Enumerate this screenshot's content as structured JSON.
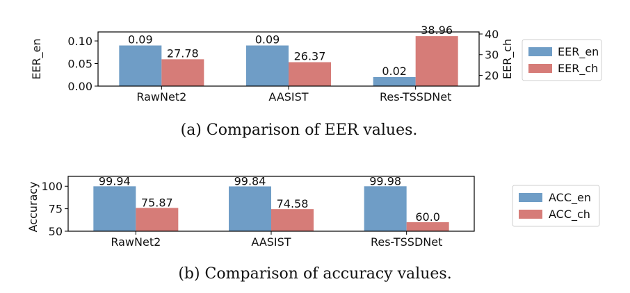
{
  "colors": {
    "en": "#6f9dc6",
    "ch": "#d67c78",
    "axis": "#000000"
  },
  "chart_data": [
    {
      "type": "bar",
      "caption": "(a)  Comparison of EER values.",
      "categories": [
        "RawNet2",
        "AASIST",
        "Res-TSSDNet"
      ],
      "series": [
        {
          "name": "EER_en",
          "axis": "left",
          "values": [
            0.09,
            0.09,
            0.02
          ],
          "labels": [
            "0.09",
            "0.09",
            "0.02"
          ]
        },
        {
          "name": "EER_ch",
          "axis": "right",
          "values": [
            27.78,
            26.37,
            38.96
          ],
          "labels": [
            "27.78",
            "26.37",
            "38.96"
          ]
        }
      ],
      "ylabel": "EER_en",
      "ylabel_right": "EER_ch",
      "ylim": [
        0,
        0.12
      ],
      "yticks": [
        "0.00",
        "0.05",
        "0.10"
      ],
      "ylim_right": [
        14.8,
        41
      ],
      "yticks_right": [
        "20",
        "30",
        "40"
      ],
      "legend": "right, outside"
    },
    {
      "type": "bar",
      "caption": "(b)  Comparison of accuracy values.",
      "categories": [
        "RawNet2",
        "AASIST",
        "Res-TSSDNet"
      ],
      "series": [
        {
          "name": "ACC_en",
          "values": [
            99.94,
            99.84,
            99.98
          ],
          "labels": [
            "99.94",
            "99.84",
            "99.98"
          ]
        },
        {
          "name": "ACC_ch",
          "values": [
            75.87,
            74.58,
            60.0
          ],
          "labels": [
            "75.87",
            "74.58",
            "60.0"
          ]
        }
      ],
      "ylabel": "Accuracy",
      "ylim": [
        50,
        111
      ],
      "yticks": [
        "50",
        "75",
        "100"
      ],
      "legend": "right, outside"
    }
  ]
}
